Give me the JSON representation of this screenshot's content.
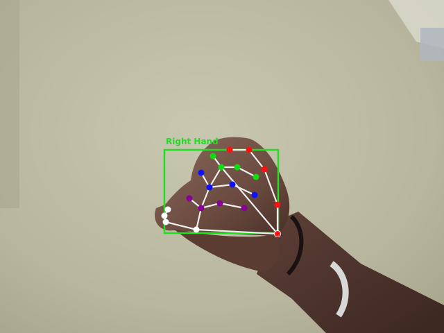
{
  "detection": {
    "label": "Right Hand",
    "box_color": "#22dd22",
    "bone_color": "#f0f0f0"
  },
  "landmark_colors": {
    "thumb": "#ff1010",
    "index": "#10dd10",
    "middle": "#1010ff",
    "ring": "#880099",
    "pinky": "#ffffff",
    "wrist": "#ff1010"
  }
}
